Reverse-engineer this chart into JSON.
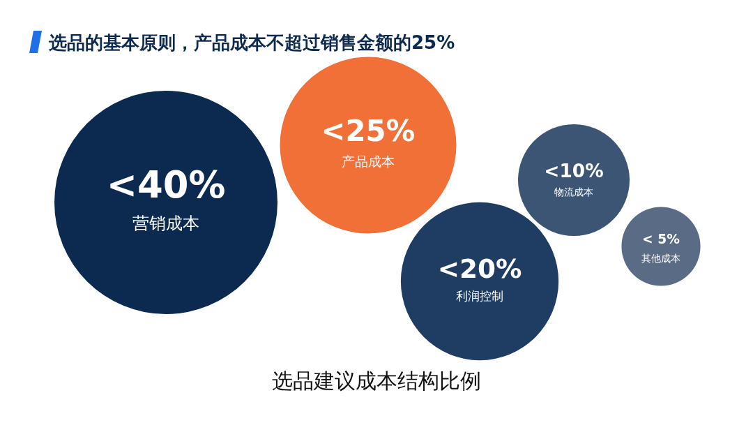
{
  "chart_data": {
    "type": "other",
    "title": "选品的基本原则，产品成本不超过销售金额的25%",
    "subtitle": "选品建议成本结构比例",
    "categories": [
      "营销成本",
      "产品成本",
      "利润控制",
      "物流成本",
      "其他成本"
    ],
    "values": [
      40,
      25,
      20,
      10,
      5
    ],
    "value_labels": [
      "<40%",
      "<25%",
      "<20%",
      "<10%",
      "< 5%"
    ],
    "colors": [
      "#0c2a4f",
      "#f07038",
      "#1f3d62",
      "#3c5574",
      "#5a6b85"
    ]
  }
}
